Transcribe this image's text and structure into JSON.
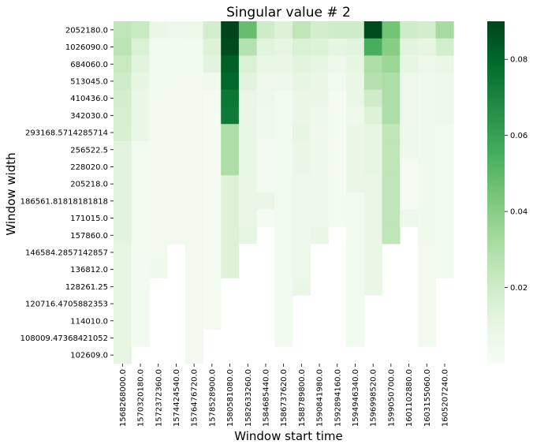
{
  "chart_data": {
    "type": "heatmap",
    "title": "Singular value # 2",
    "xlabel": "Window start time",
    "ylabel": "Window width",
    "x_categories": [
      "1568268000.0",
      "1570320180.0",
      "1572372360.0",
      "1574424540.0",
      "1576476720.0",
      "1578528900.0",
      "1580581080.0",
      "1582633260.0",
      "1584685440.0",
      "1586737620.0",
      "1588789800.0",
      "1590841980.0",
      "1592894160.0",
      "1594946340.0",
      "1596998520.0",
      "1599050700.0",
      "1601102880.0",
      "1603155060.0",
      "1605207240.0"
    ],
    "y_categories": [
      "2052180.0",
      "1026090.0",
      "684060.0",
      "513045.0",
      "410436.0",
      "342030.0",
      "293168.5714285714",
      "256522.5",
      "228020.0",
      "205218.0",
      "186561.81818181818",
      "171015.0",
      "157860.0",
      "146584.2857142857",
      "136812.0",
      "128261.25",
      "120716.4705882353",
      "114010.0",
      "108009.47368421052",
      "102609.0"
    ],
    "colorbar": {
      "min": 0.0,
      "max": 0.09,
      "ticks": [
        0.02,
        0.04,
        0.06,
        0.08
      ],
      "colormap": "Greens"
    },
    "values": [
      [
        0.025,
        0.022,
        0.008,
        0.006,
        0.007,
        0.018,
        0.09,
        0.048,
        0.02,
        0.014,
        0.025,
        0.018,
        0.02,
        0.02,
        0.088,
        0.045,
        0.02,
        0.018,
        0.032
      ],
      [
        0.026,
        0.015,
        0.004,
        0.003,
        0.004,
        0.014,
        0.088,
        0.028,
        0.012,
        0.01,
        0.015,
        0.014,
        0.01,
        0.012,
        0.055,
        0.04,
        0.012,
        0.01,
        0.018
      ],
      [
        0.022,
        0.012,
        0.004,
        0.003,
        0.004,
        0.012,
        0.082,
        0.015,
        0.008,
        0.008,
        0.012,
        0.01,
        0.006,
        0.01,
        0.03,
        0.035,
        0.01,
        0.006,
        0.008
      ],
      [
        0.02,
        0.01,
        0.004,
        0.003,
        0.003,
        0.005,
        0.08,
        0.012,
        0.006,
        0.006,
        0.01,
        0.008,
        0.004,
        0.008,
        0.028,
        0.03,
        0.006,
        0.005,
        0.006
      ],
      [
        0.018,
        0.008,
        0.003,
        0.003,
        0.003,
        0.002,
        0.075,
        0.008,
        0.006,
        0.004,
        0.008,
        0.008,
        0.002,
        0.008,
        0.02,
        0.03,
        0.006,
        0.005,
        0.006
      ],
      [
        0.017,
        0.008,
        0.003,
        0.003,
        0.003,
        0.002,
        0.074,
        0.008,
        0.005,
        0.004,
        0.008,
        0.006,
        0.002,
        0.006,
        0.014,
        0.03,
        0.006,
        0.005,
        0.006
      ],
      [
        0.016,
        0.008,
        0.003,
        0.003,
        0.003,
        0.002,
        0.03,
        0.008,
        0.005,
        0.004,
        0.01,
        0.006,
        0.002,
        0.008,
        0.01,
        0.025,
        0.006,
        0.005,
        0.004
      ],
      [
        0.012,
        0.004,
        0.003,
        0.003,
        0.003,
        0.002,
        0.03,
        0.008,
        0.003,
        0.004,
        0.008,
        0.006,
        0.002,
        0.008,
        0.01,
        0.025,
        0.006,
        0.005,
        0.004
      ],
      [
        0.012,
        0.004,
        0.003,
        0.003,
        0.003,
        0.002,
        0.03,
        0.008,
        0.003,
        0.004,
        0.008,
        0.006,
        0.002,
        0.008,
        0.01,
        0.025,
        0.002,
        0.005,
        0.004
      ],
      [
        0.012,
        0.004,
        0.003,
        0.003,
        0.003,
        0.002,
        0.014,
        0.008,
        0.003,
        0.004,
        0.006,
        0.006,
        0.002,
        0.008,
        0.008,
        0.025,
        0.002,
        0.005,
        0.004
      ],
      [
        0.012,
        0.004,
        0.003,
        0.003,
        0.003,
        0.002,
        0.014,
        0.008,
        0.008,
        0.004,
        0.006,
        0.006,
        0.002,
        0.004,
        0.008,
        0.025,
        0.002,
        0.005,
        0.004
      ],
      [
        0.012,
        0.004,
        0.003,
        0.003,
        0.003,
        0.002,
        0.014,
        0.008,
        0.002,
        0.004,
        0.006,
        0.006,
        0.002,
        0.004,
        0.008,
        0.025,
        0.006,
        0.005,
        0.004
      ],
      [
        0.012,
        0.004,
        0.003,
        0.003,
        0.003,
        0.002,
        0.014,
        0.01,
        null,
        0.004,
        0.006,
        0.008,
        null,
        0.004,
        0.008,
        0.025,
        null,
        0.005,
        0.004
      ],
      [
        0.01,
        0.004,
        0.003,
        null,
        0.003,
        0.002,
        0.014,
        null,
        null,
        0.004,
        0.006,
        null,
        null,
        0.004,
        0.008,
        null,
        null,
        0.003,
        0.004
      ],
      [
        0.01,
        0.004,
        0.005,
        null,
        0.003,
        0.002,
        0.014,
        null,
        null,
        0.004,
        0.006,
        null,
        null,
        0.004,
        0.008,
        null,
        null,
        0.003,
        0.004
      ],
      [
        0.01,
        0.004,
        null,
        null,
        0.003,
        0.002,
        null,
        null,
        null,
        0.004,
        0.008,
        null,
        null,
        0.004,
        0.008,
        null,
        null,
        0.003,
        null
      ],
      [
        0.01,
        0.004,
        null,
        null,
        0.003,
        0.002,
        null,
        null,
        null,
        0.004,
        null,
        null,
        null,
        0.004,
        null,
        null,
        null,
        0.003,
        null
      ],
      [
        0.01,
        0.004,
        null,
        null,
        0.003,
        0.002,
        null,
        null,
        null,
        0.004,
        null,
        null,
        null,
        0.004,
        null,
        null,
        null,
        0.003,
        null
      ],
      [
        0.01,
        0.004,
        null,
        null,
        0.003,
        null,
        null,
        null,
        null,
        0.004,
        null,
        null,
        null,
        0.004,
        null,
        null,
        null,
        0.003,
        null
      ],
      [
        0.01,
        null,
        null,
        null,
        0.003,
        null,
        null,
        null,
        null,
        null,
        null,
        null,
        null,
        null,
        null,
        null,
        null,
        null,
        null
      ]
    ]
  }
}
